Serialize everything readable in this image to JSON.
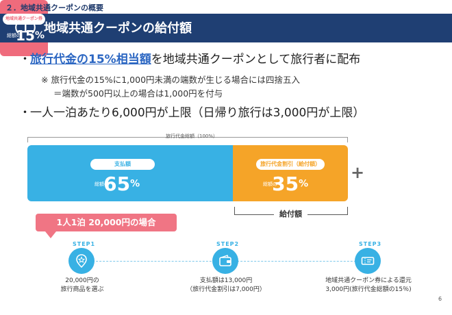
{
  "header": {
    "section": "２．地域共通クーポンの概要",
    "title": "（１）地域共通クーポンの給付額"
  },
  "bullets": {
    "b1_highlight": "旅行代金の15%相当額",
    "b1_rest": "を地域共通クーポンとして旅行者に配布",
    "note1": "※ 旅行代金の15%に1,000円未満の端数が生じる場合には四捨五入",
    "note2": "＝端数が500円以上の場合は1,000円を付与",
    "b3": "一人一泊あたり6,000円が上限（日帰り旅行は3,000円が上限）"
  },
  "diagram": {
    "total_label": "旅行代金総額（100%）",
    "blue": {
      "label": "支払額",
      "prefix": "総額の",
      "value": "65",
      "unit": "%"
    },
    "orange": {
      "label": "旅行代金割引（給付額）",
      "prefix": "総額の",
      "value": "35",
      "unit": "%"
    },
    "pink": {
      "label": "地域共通クーポン券",
      "prefix": "総額の",
      "value": "15",
      "unit": "%"
    },
    "plus": "+",
    "payout_label": "給付額"
  },
  "callout": "1人1泊 20,000円の場合",
  "steps": [
    {
      "label": "STEP1",
      "line1": "20,000円の",
      "line2": "旅行商品を選ぶ",
      "icon": "star-pin-icon"
    },
    {
      "label": "STEP2",
      "line1": "支払額は13,000円",
      "line2": "（旅行代金割引は7,000円）",
      "icon": "wallet-icon"
    },
    {
      "label": "STEP3",
      "line1": "地域共通クーポン券による還元",
      "line2": "3,000円(旅行代金総額の15％)",
      "icon": "coupon-icon"
    }
  ],
  "page_number": "6",
  "colors": {
    "title_bar": "#1f3f73",
    "blue": "#38b1e4",
    "orange": "#f5a428",
    "pink": "#ef6b7c",
    "callout": "#f07584",
    "highlight": "#2b66c2"
  }
}
